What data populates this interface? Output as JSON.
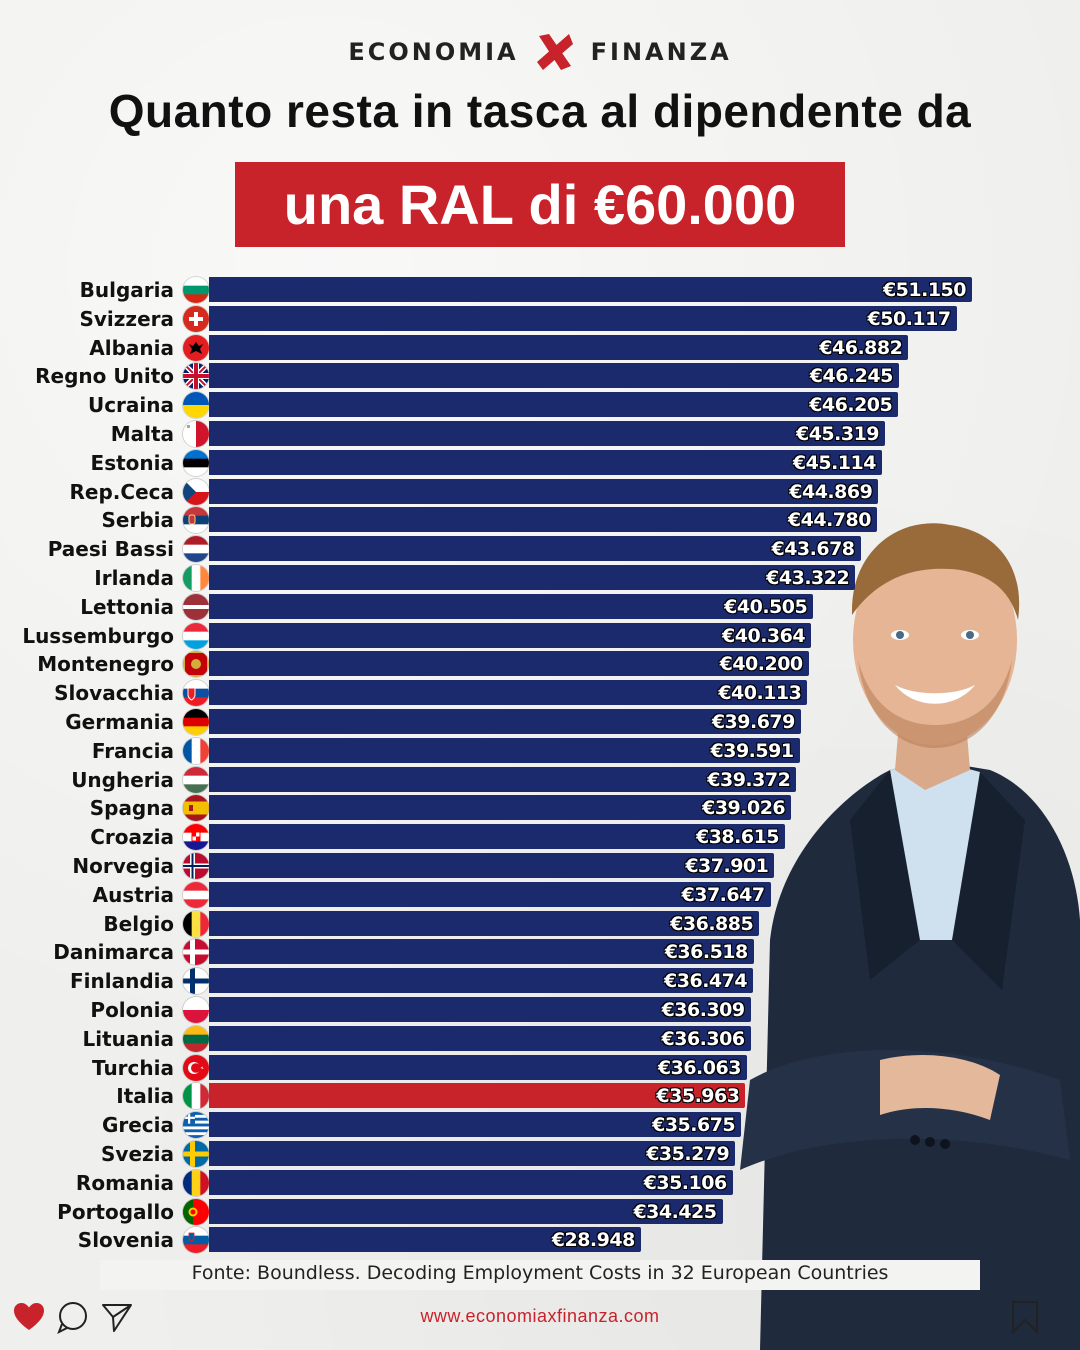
{
  "header": {
    "brand_left": "ECONOMIA",
    "brand_right": "FINANZA",
    "title": "Quanto resta in tasca al dipendente da",
    "highlight": "una RAL di €60.000"
  },
  "colors": {
    "bar": "#1a2a6c",
    "highlight_bar": "#c8222b",
    "accent": "#c8222b"
  },
  "chart_data": {
    "type": "bar",
    "orientation": "horizontal",
    "title": "Quanto resta in tasca al dipendente da una RAL di €60.000",
    "xlabel": "",
    "ylabel": "",
    "highlight": "Italia",
    "categories": [
      "Bulgaria",
      "Svizzera",
      "Albania",
      "Regno Unito",
      "Ucraina",
      "Malta",
      "Estonia",
      "Rep.Ceca",
      "Serbia",
      "Paesi Bassi",
      "Irlanda",
      "Lettonia",
      "Lussemburgo",
      "Montenegro",
      "Slovacchia",
      "Germania",
      "Francia",
      "Ungheria",
      "Spagna",
      "Croazia",
      "Norvegia",
      "Austria",
      "Belgio",
      "Danimarca",
      "Finlandia",
      "Polonia",
      "Lituania",
      "Turchia",
      "Italia",
      "Grecia",
      "Svezia",
      "Romania",
      "Portogallo",
      "Slovenia"
    ],
    "values": [
      51150,
      50117,
      46882,
      46245,
      46205,
      45319,
      45114,
      44869,
      44780,
      43678,
      43322,
      40505,
      40364,
      40200,
      40113,
      39679,
      39591,
      39372,
      39026,
      38615,
      37901,
      37647,
      36885,
      36518,
      36474,
      36309,
      36306,
      36063,
      35963,
      35675,
      35279,
      35106,
      34425,
      28948
    ],
    "labels": [
      "€51.150",
      "€50.117",
      "€46.882",
      "€46.245",
      "€46.205",
      "€45.319",
      "€45.114",
      "€44.869",
      "€44.780",
      "€43.678",
      "€43.322",
      "€40.505",
      "€40.364",
      "€40.200",
      "€40.113",
      "€39.679",
      "€39.591",
      "€39.372",
      "€39.026",
      "€38.615",
      "€37.901",
      "€37.647",
      "€36.885",
      "€36.518",
      "€36.474",
      "€36.309",
      "€36.306",
      "€36.063",
      "€35.963",
      "€35.675",
      "€35.279",
      "€35.106",
      "€34.425",
      "€28.948"
    ],
    "flags": [
      "bulgaria-flag",
      "switzerland-flag",
      "albania-flag",
      "uk-flag",
      "ukraine-flag",
      "malta-flag",
      "estonia-flag",
      "czech-flag",
      "serbia-flag",
      "netherlands-flag",
      "ireland-flag",
      "latvia-flag",
      "luxembourg-flag",
      "montenegro-flag",
      "slovakia-flag",
      "germany-flag",
      "france-flag",
      "hungary-flag",
      "spain-flag",
      "croatia-flag",
      "norway-flag",
      "austria-flag",
      "belgium-flag",
      "denmark-flag",
      "finland-flag",
      "poland-flag",
      "lithuania-flag",
      "turkey-flag",
      "italy-flag",
      "greece-flag",
      "sweden-flag",
      "romania-flag",
      "portugal-flag",
      "slovenia-flag"
    ]
  },
  "source": "Fonte: Boundless. Decoding Employment Costs in 32 European Countries",
  "footer": {
    "url": "www.economiaxfinanza.com"
  }
}
